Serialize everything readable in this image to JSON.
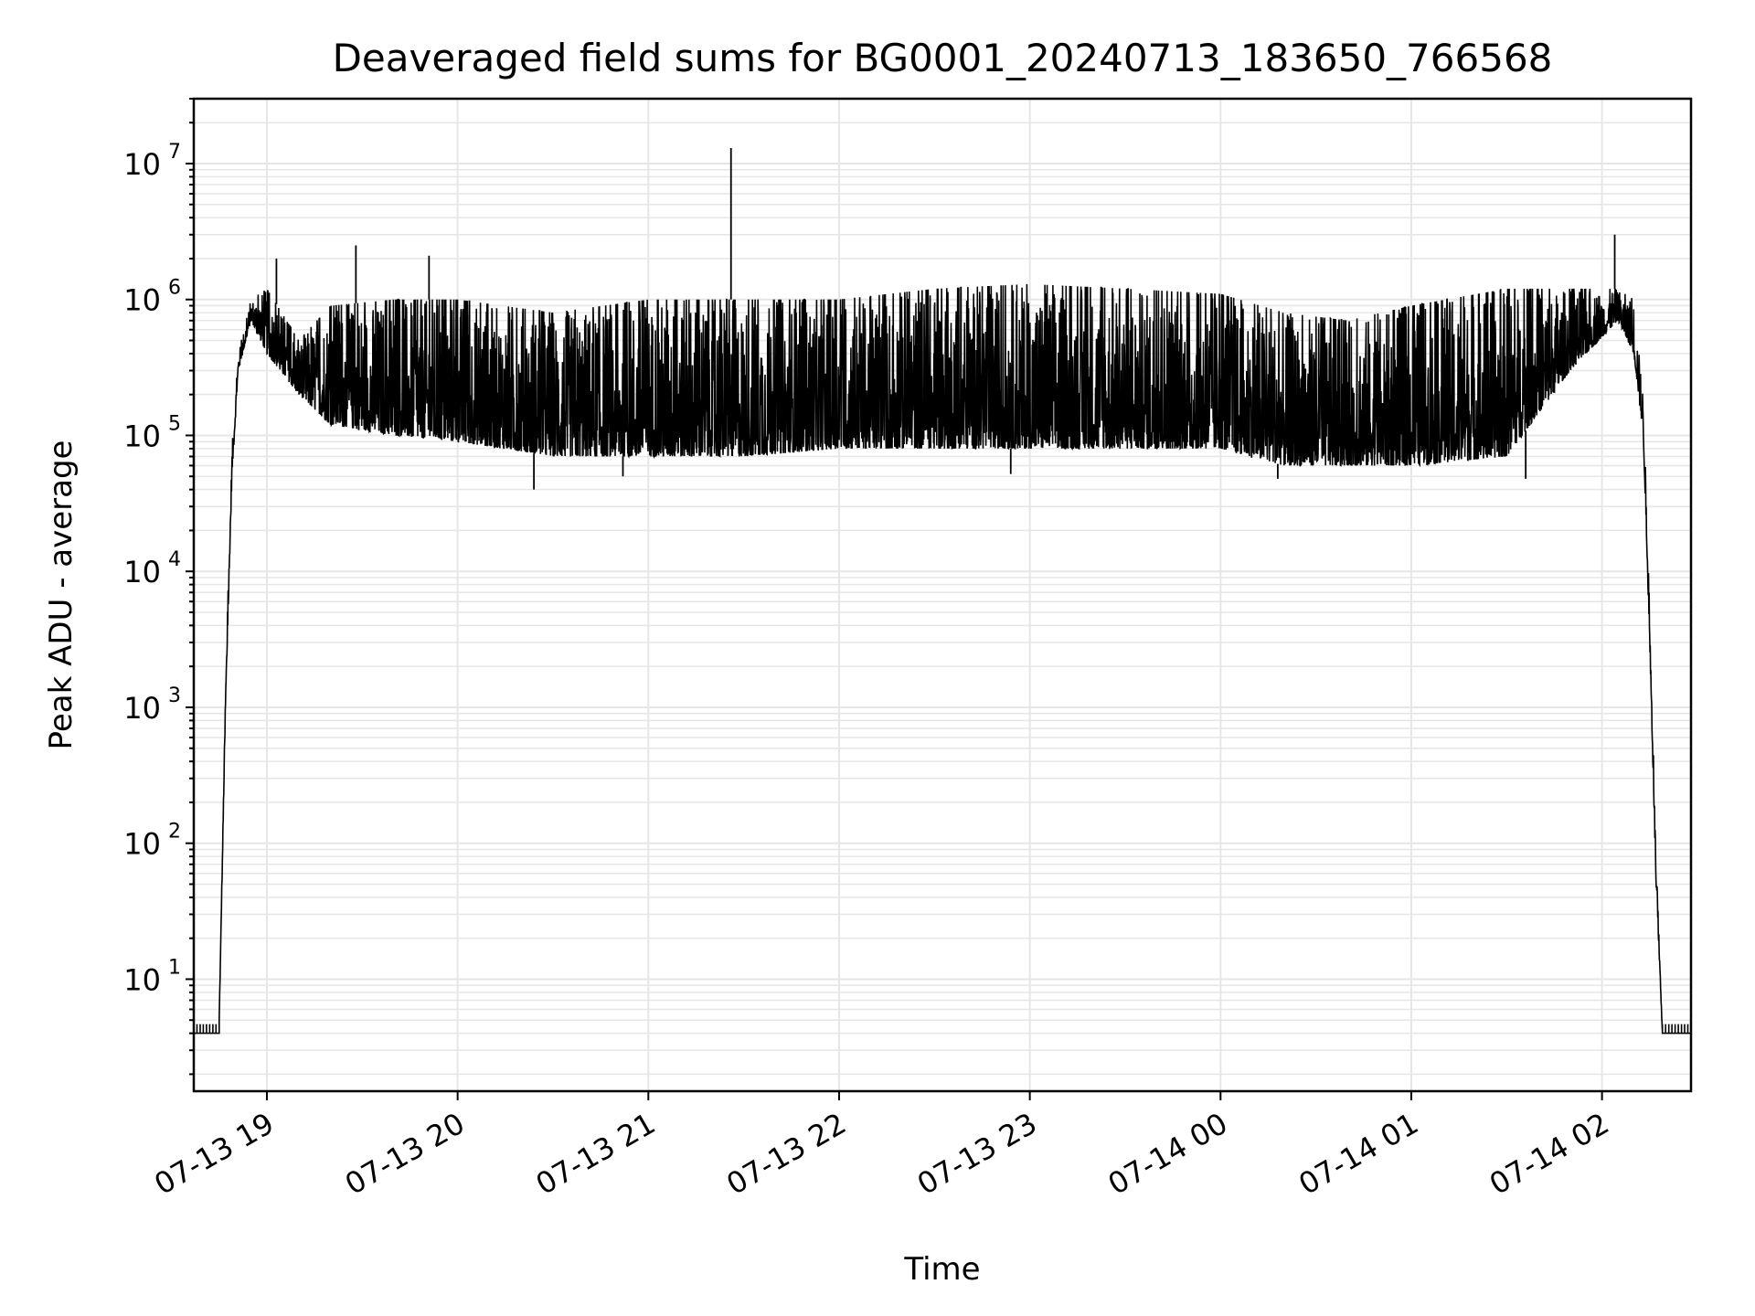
{
  "chart_data": {
    "type": "line",
    "title": "Deaveraged field sums for BG0001_20240713_183650_766568",
    "xlabel": "Time",
    "ylabel": "Peak ADU - average",
    "yscale": "log",
    "ylim": [
      1.5,
      30000000
    ],
    "xlim": [
      "2024-07-13 18:37",
      "2024-07-14 02:28"
    ],
    "grid": "on (major and minor)",
    "x_ticks": [
      "07-13 19",
      "07-13 20",
      "07-13 21",
      "07-13 22",
      "07-13 23",
      "07-14 00",
      "07-14 01",
      "07-14 02"
    ],
    "y_ticks": [
      {
        "base": "10",
        "exp": "1"
      },
      {
        "base": "10",
        "exp": "2"
      },
      {
        "base": "10",
        "exp": "3"
      },
      {
        "base": "10",
        "exp": "4"
      },
      {
        "base": "10",
        "exp": "5"
      },
      {
        "base": "10",
        "exp": "6"
      },
      {
        "base": "10",
        "exp": "7"
      }
    ],
    "color": "#000000",
    "series": [
      {
        "name": "",
        "baseline_start": {
          "from": "2024-07-13 18:37",
          "to": "2024-07-13 18:45",
          "y": 4
        },
        "baseline_end": {
          "from": "2024-07-14 02:19",
          "to": "2024-07-14 02:28",
          "y": 4
        },
        "envelope": [
          {
            "t": "2024-07-13 18:45",
            "low": 5,
            "high": 5
          },
          {
            "t": "2024-07-13 18:47",
            "low": 1000,
            "high": 1500
          },
          {
            "t": "2024-07-13 18:49",
            "low": 50000,
            "high": 80000
          },
          {
            "t": "2024-07-13 18:51",
            "low": 300000,
            "high": 400000
          },
          {
            "t": "2024-07-13 18:55",
            "low": 700000,
            "high": 1000000
          },
          {
            "t": "2024-07-13 19:00",
            "low": 400000,
            "high": 1200000
          },
          {
            "t": "2024-07-13 19:10",
            "low": 200000,
            "high": 500000
          },
          {
            "t": "2024-07-13 19:20",
            "low": 120000,
            "high": 900000
          },
          {
            "t": "2024-07-13 19:40",
            "low": 100000,
            "high": 1000000
          },
          {
            "t": "2024-07-13 20:00",
            "low": 90000,
            "high": 1000000
          },
          {
            "t": "2024-07-13 20:30",
            "low": 70000,
            "high": 800000
          },
          {
            "t": "2024-07-13 21:00",
            "low": 70000,
            "high": 1000000
          },
          {
            "t": "2024-07-13 21:30",
            "low": 70000,
            "high": 1000000
          },
          {
            "t": "2024-07-13 22:00",
            "low": 80000,
            "high": 1000000
          },
          {
            "t": "2024-07-13 22:30",
            "low": 80000,
            "high": 1200000
          },
          {
            "t": "2024-07-13 23:00",
            "low": 80000,
            "high": 1300000
          },
          {
            "t": "2024-07-13 23:30",
            "low": 80000,
            "high": 1200000
          },
          {
            "t": "2024-07-14 00:00",
            "low": 80000,
            "high": 1100000
          },
          {
            "t": "2024-07-14 00:20",
            "low": 60000,
            "high": 800000
          },
          {
            "t": "2024-07-14 00:40",
            "low": 60000,
            "high": 700000
          },
          {
            "t": "2024-07-14 01:00",
            "low": 60000,
            "high": 900000
          },
          {
            "t": "2024-07-14 01:30",
            "low": 70000,
            "high": 1200000
          },
          {
            "t": "2024-07-14 01:50",
            "low": 300000,
            "high": 1200000
          },
          {
            "t": "2024-07-14 02:05",
            "low": 700000,
            "high": 1200000
          },
          {
            "t": "2024-07-14 02:10",
            "low": 400000,
            "high": 1000000
          },
          {
            "t": "2024-07-14 02:13",
            "low": 100000,
            "high": 200000
          },
          {
            "t": "2024-07-14 02:15",
            "low": 3000,
            "high": 5000
          },
          {
            "t": "2024-07-14 02:17",
            "low": 50,
            "high": 80
          },
          {
            "t": "2024-07-14 02:19",
            "low": 4,
            "high": 4
          }
        ],
        "spikes": [
          {
            "t": "2024-07-13 19:03",
            "y": 2000000
          },
          {
            "t": "2024-07-13 19:28",
            "y": 2500000
          },
          {
            "t": "2024-07-13 19:51",
            "y": 2100000
          },
          {
            "t": "2024-07-13 21:26",
            "y": 13000000
          },
          {
            "t": "2024-07-14 02:04",
            "y": 3000000
          }
        ],
        "dips": [
          {
            "t": "2024-07-13 20:24",
            "y": 40000
          },
          {
            "t": "2024-07-13 20:52",
            "y": 50000
          },
          {
            "t": "2024-07-13 22:54",
            "y": 52000
          },
          {
            "t": "2024-07-14 00:18",
            "y": 48000
          },
          {
            "t": "2024-07-14 01:36",
            "y": 48000
          }
        ]
      }
    ]
  }
}
